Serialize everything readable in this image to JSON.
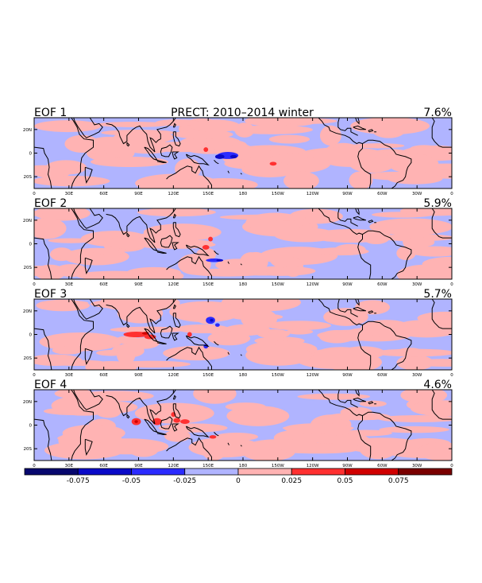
{
  "chart_data": {
    "type": "heatmap",
    "title": "PRECT: 2010–2014 winter",
    "panels": [
      {
        "label": "EOF 1",
        "variance": "7.6%"
      },
      {
        "label": "EOF 2",
        "variance": "5.9%"
      },
      {
        "label": "EOF 3",
        "variance": "5.7%"
      },
      {
        "label": "EOF 4",
        "variance": "4.6%"
      }
    ],
    "y_ticks": [
      "20N",
      "0",
      "20S"
    ],
    "y_tick_values": [
      20,
      0,
      -20
    ],
    "x_ticks": [
      "0",
      "30E",
      "60E",
      "90E",
      "120E",
      "150E",
      "180",
      "150W",
      "120W",
      "90W",
      "60W",
      "30W",
      "0"
    ],
    "x_tick_values": [
      0,
      30,
      60,
      90,
      120,
      150,
      180,
      210,
      240,
      270,
      300,
      330,
      360
    ],
    "xlim": [
      0,
      360
    ],
    "ylim": [
      -30,
      30
    ],
    "colorbar": {
      "levels": [
        -0.1,
        -0.075,
        -0.05,
        -0.025,
        0,
        0.025,
        0.05,
        0.075,
        0.1
      ],
      "tick_labels": [
        "-0.075",
        "-0.05",
        "-0.025",
        "0",
        "0.025",
        "0.05",
        "0.075"
      ],
      "colors": [
        "#07076e",
        "#0a0ac8",
        "#2b2bff",
        "#b0b4ff",
        "#ffb3b3",
        "#ff3030",
        "#d00000",
        "#7a0000"
      ]
    }
  }
}
